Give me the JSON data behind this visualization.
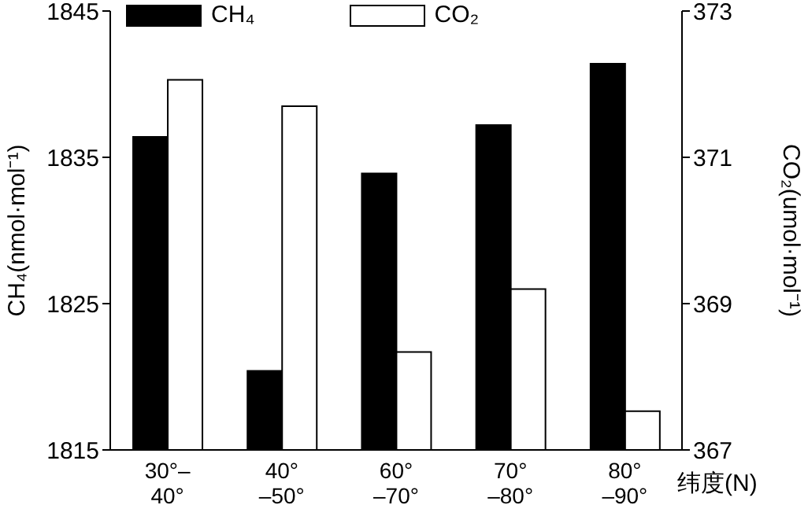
{
  "chart_data": {
    "type": "bar",
    "categories": [
      "30°–\n40°",
      "40°\n–50°",
      "60°\n–70°",
      "70°\n–80°",
      "80°\n–90°"
    ],
    "series": [
      {
        "name": "CH₄",
        "color": "#000000",
        "values": [
          1836.4,
          1820.4,
          1833.9,
          1837.2,
          1841.4
        ]
      },
      {
        "name": "CO₂",
        "color": "#ffffff",
        "axis": "y2",
        "values": [
          372.06,
          371.7,
          368.34,
          369.2,
          367.53
        ]
      }
    ],
    "ylim": [
      1815,
      1845
    ],
    "yticks": [
      1815,
      1825,
      1835,
      1845
    ],
    "y2lim": [
      367,
      373
    ],
    "y2ticks": [
      367,
      369,
      371,
      373
    ],
    "ylabel": "CH₄(nmol·mol⁻¹)",
    "y2label": "CO₂(umol·mol⁻¹)",
    "xlabel": "纬度(N)",
    "legend": "top",
    "grid": false
  }
}
